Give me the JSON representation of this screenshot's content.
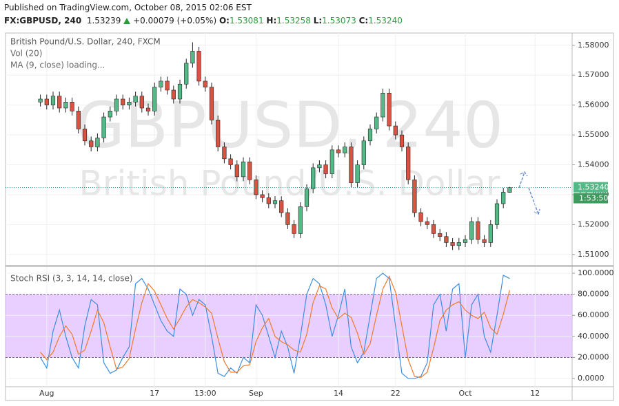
{
  "header": {
    "published": "Published on TradingView.com, October 08, 2015 02:06 EST",
    "symbol": "FX:GBPUSD, 240",
    "last": "1.53239",
    "change": "+0.00079 (+0.05%)",
    "ohlc": [
      {
        "label": "O:",
        "value": "1.53081"
      },
      {
        "label": "H:",
        "value": "1.53258"
      },
      {
        "label": "L:",
        "value": "1.53073"
      },
      {
        "label": "C:",
        "value": "1.53240"
      }
    ]
  },
  "chart_data": [
    {
      "type": "candlestick",
      "title": "British Pound/U.S. Dollar, 240, FXCM",
      "indicators": [
        "Vol (20)",
        "MA (9, close) loading..."
      ],
      "watermark": [
        "GBPUSD, 240",
        "British Pound/U.S. Dollar"
      ],
      "categories": [
        null,
        "Aug",
        null,
        null,
        null,
        null,
        null,
        null,
        null,
        null,
        null,
        null,
        null,
        null,
        null,
        null,
        null,
        null,
        "17",
        null,
        null,
        null,
        null,
        null,
        null,
        null,
        "13:00",
        null,
        null,
        null,
        null,
        null,
        null,
        null,
        "Sep",
        null,
        null,
        null,
        null,
        null,
        null,
        null,
        null,
        null,
        null,
        null,
        null,
        "14",
        null,
        null,
        null,
        null,
        null,
        null,
        null,
        null,
        "22",
        null,
        null,
        null,
        null,
        null,
        null,
        null,
        null,
        null,
        null,
        "Oct",
        null,
        null,
        null,
        null,
        null,
        null,
        null,
        null,
        null,
        null,
        "12",
        null,
        null,
        null,
        null,
        null
      ],
      "open": [
        1.561,
        1.562,
        1.56,
        1.563,
        1.559,
        1.561,
        1.558,
        1.552,
        1.548,
        1.546,
        1.549,
        1.556,
        1.558,
        1.562,
        1.56,
        1.561,
        1.563,
        1.559,
        1.558,
        1.566,
        1.568,
        1.565,
        1.562,
        1.567,
        1.574,
        1.578,
        1.568,
        1.566,
        1.555,
        1.546,
        1.542,
        1.54,
        1.536,
        1.541,
        1.535,
        1.53,
        1.529,
        1.527,
        1.528,
        1.524,
        1.52,
        1.517,
        1.526,
        1.532,
        1.539,
        1.54,
        1.537,
        1.545,
        1.544,
        1.546,
        1.534,
        1.54,
        1.548,
        1.552,
        1.556,
        1.564,
        1.553,
        1.55,
        1.546,
        1.535,
        1.524,
        1.521,
        1.52,
        1.517,
        1.516,
        1.514,
        1.513,
        1.514,
        1.515,
        1.521,
        1.515,
        1.514,
        1.52,
        1.527,
        1.5308,
        null,
        null,
        null,
        null,
        null,
        null,
        null,
        null,
        null
      ],
      "high": [
        1.5635,
        1.5635,
        1.5645,
        1.5645,
        1.5625,
        1.5625,
        1.5595,
        1.5535,
        1.5495,
        1.5505,
        1.5575,
        1.5595,
        1.5635,
        1.5635,
        1.5625,
        1.5645,
        1.5645,
        1.5605,
        1.5675,
        1.5695,
        1.5695,
        1.5665,
        1.5685,
        1.5755,
        1.581,
        1.5795,
        1.5695,
        1.5675,
        1.5565,
        1.5475,
        1.5435,
        1.5415,
        1.5425,
        1.5425,
        1.5365,
        1.5315,
        1.5305,
        1.5295,
        1.5295,
        1.5255,
        1.5215,
        1.5275,
        1.5335,
        1.5405,
        1.5415,
        1.5415,
        1.5465,
        1.5465,
        1.5475,
        1.5475,
        1.5415,
        1.5495,
        1.5535,
        1.5575,
        1.5655,
        1.5655,
        1.5545,
        1.5515,
        1.5475,
        1.5365,
        1.5255,
        1.5225,
        1.5215,
        1.5185,
        1.5175,
        1.5155,
        1.5155,
        1.5165,
        1.5225,
        1.5225,
        1.5165,
        1.5215,
        1.5285,
        1.5323,
        1.5326,
        null,
        null,
        null,
        null,
        null,
        null,
        null,
        null,
        null
      ],
      "low": [
        1.5595,
        1.5585,
        1.5585,
        1.5575,
        1.5575,
        1.5565,
        1.5505,
        1.5465,
        1.5445,
        1.5445,
        1.5475,
        1.5545,
        1.5565,
        1.5585,
        1.5585,
        1.5595,
        1.5575,
        1.5565,
        1.5565,
        1.5645,
        1.5635,
        1.5605,
        1.5605,
        1.5655,
        1.5725,
        1.5665,
        1.5645,
        1.5535,
        1.5445,
        1.5405,
        1.5385,
        1.5345,
        1.5345,
        1.5335,
        1.5285,
        1.5275,
        1.5255,
        1.5255,
        1.5225,
        1.5185,
        1.5155,
        1.5155,
        1.5245,
        1.5305,
        1.5375,
        1.5355,
        1.5355,
        1.5425,
        1.5425,
        1.5325,
        1.5325,
        1.5385,
        1.5465,
        1.5505,
        1.5545,
        1.5515,
        1.5485,
        1.5445,
        1.5335,
        1.5225,
        1.5195,
        1.5185,
        1.5155,
        1.5145,
        1.5125,
        1.5115,
        1.5115,
        1.5125,
        1.5135,
        1.5135,
        1.5125,
        1.5125,
        1.5185,
        1.5255,
        1.5307,
        null,
        null,
        null,
        null,
        null,
        null,
        null,
        null,
        null
      ],
      "close": [
        1.562,
        1.56,
        1.563,
        1.559,
        1.561,
        1.558,
        1.552,
        1.548,
        1.546,
        1.549,
        1.556,
        1.558,
        1.562,
        1.56,
        1.561,
        1.563,
        1.559,
        1.558,
        1.566,
        1.568,
        1.565,
        1.562,
        1.567,
        1.574,
        1.578,
        1.568,
        1.566,
        1.555,
        1.546,
        1.542,
        1.54,
        1.536,
        1.541,
        1.535,
        1.53,
        1.529,
        1.527,
        1.528,
        1.524,
        1.52,
        1.517,
        1.526,
        1.532,
        1.539,
        1.54,
        1.537,
        1.545,
        1.544,
        1.546,
        1.534,
        1.54,
        1.548,
        1.552,
        1.556,
        1.564,
        1.553,
        1.55,
        1.546,
        1.535,
        1.524,
        1.521,
        1.52,
        1.517,
        1.516,
        1.514,
        1.513,
        1.514,
        1.515,
        1.521,
        1.515,
        1.514,
        1.52,
        1.527,
        1.5308,
        1.5324,
        null,
        null,
        null,
        null,
        null,
        null,
        null,
        null,
        null
      ],
      "up_color": "#53b987",
      "down_color": "#d75442",
      "wick_color": "#222222",
      "ylim": [
        1.5065,
        1.5841
      ],
      "yticks": [
        {
          "value": 1.51,
          "label": "1.51000"
        },
        {
          "value": 1.52,
          "label": "1.52000"
        },
        {
          "value": 1.53,
          "label": "1.53000"
        },
        {
          "value": 1.54,
          "label": "1.54000"
        },
        {
          "value": 1.55,
          "label": "1.55000"
        },
        {
          "value": 1.56,
          "label": "1.56000"
        },
        {
          "value": 1.57,
          "label": "1.57000"
        },
        {
          "value": 1.58,
          "label": "1.58000"
        }
      ],
      "grid": true,
      "last_price": {
        "value": 1.5324,
        "label": "1.53240"
      },
      "countdown": "1:53:50"
    },
    {
      "type": "line",
      "title": "Stoch RSI (3, 3, 14, 14, close)",
      "series": [
        {
          "color": "#3c8ee0",
          "values": [
            20,
            10,
            45,
            65,
            40,
            20,
            10,
            50,
            75,
            70,
            15,
            5,
            8,
            20,
            30,
            90,
            95,
            85,
            70,
            55,
            45,
            40,
            85,
            80,
            60,
            75,
            70,
            40,
            5,
            2,
            10,
            5,
            20,
            15,
            70,
            60,
            40,
            20,
            45,
            30,
            5,
            40,
            80,
            95,
            90,
            70,
            40,
            60,
            85,
            30,
            15,
            25,
            60,
            95,
            100,
            95,
            50,
            5,
            0,
            0,
            2,
            15,
            70,
            80,
            45,
            85,
            90,
            20,
            70,
            80,
            40,
            25,
            60,
            98,
            95,
            null,
            null,
            null,
            null,
            null,
            null,
            null,
            null,
            null
          ]
        },
        {
          "color": "#f07a2a",
          "values": [
            25,
            18,
            25,
            40,
            50,
            42,
            23,
            27,
            45,
            65,
            53,
            30,
            9,
            11,
            19,
            47,
            72,
            90,
            83,
            70,
            57,
            47,
            57,
            68,
            75,
            72,
            68,
            62,
            38,
            16,
            6,
            6,
            12,
            13,
            35,
            48,
            57,
            40,
            35,
            32,
            27,
            25,
            42,
            72,
            88,
            85,
            67,
            57,
            62,
            58,
            43,
            23,
            33,
            60,
            85,
            97,
            82,
            50,
            18,
            2,
            1,
            6,
            29,
            55,
            65,
            70,
            73,
            65,
            60,
            57,
            63,
            48,
            42,
            61,
            84,
            null,
            null,
            null,
            null,
            null,
            null,
            null,
            null,
            null
          ]
        }
      ],
      "band": [
        20,
        80
      ],
      "band_color": "#e1bfff",
      "ylim": [
        -7.8,
        105.9
      ],
      "yticks": [
        {
          "value": 0,
          "label": "0.0000"
        },
        {
          "value": 20,
          "label": "20.0000"
        },
        {
          "value": 40,
          "label": "40.0000"
        },
        {
          "value": 60,
          "label": "60.0000"
        },
        {
          "value": 80,
          "label": "80.0000"
        },
        {
          "value": 100,
          "label": "100.0000"
        }
      ]
    }
  ]
}
